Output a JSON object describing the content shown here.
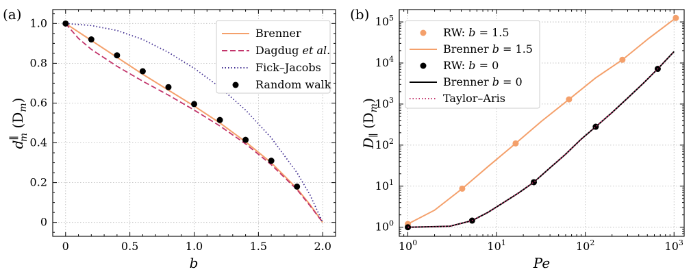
{
  "chart_data": [
    {
      "panel_label": "(a)",
      "type": "line",
      "xlabel": "b",
      "ylabel": "d_m^∥ (D_m)",
      "xlim": [
        -0.1,
        2.1
      ],
      "ylim": [
        -0.07,
        1.07
      ],
      "xscale": "linear",
      "yscale": "linear",
      "xticks": [
        0,
        0.5,
        1.0,
        1.5,
        2.0
      ],
      "xtick_labels": [
        "0",
        "0.5",
        "1.0",
        "1.5",
        "2.0"
      ],
      "yticks": [
        0,
        0.2,
        0.4,
        0.6,
        0.8,
        1.0
      ],
      "ytick_labels": [
        "0",
        "0.2",
        "0.4",
        "0.6",
        "0.8",
        "1.0"
      ],
      "grid": true,
      "legend_position": "top-right",
      "series": [
        {
          "name": "Brenner",
          "style": "solid",
          "color": "#f4a06b",
          "x": [
            0,
            0.2,
            0.4,
            0.6,
            0.8,
            1.0,
            1.2,
            1.4,
            1.6,
            1.8,
            1.9,
            2.0
          ],
          "y": [
            1.0,
            0.915,
            0.83,
            0.745,
            0.665,
            0.585,
            0.5,
            0.405,
            0.3,
            0.17,
            0.09,
            0.0
          ]
        },
        {
          "name": "Dagdug et al.",
          "style": "dashed",
          "color": "#c2346b",
          "x": [
            0,
            0.1,
            0.2,
            0.4,
            0.6,
            0.8,
            1.0,
            1.2,
            1.4,
            1.6,
            1.8,
            1.9,
            2.0
          ],
          "y": [
            1.0,
            0.925,
            0.87,
            0.785,
            0.71,
            0.64,
            0.565,
            0.485,
            0.395,
            0.29,
            0.165,
            0.085,
            0.0
          ]
        },
        {
          "name": "Fick–Jacobs",
          "style": "dotted",
          "color": "#3d2a8f",
          "x": [
            0,
            0.2,
            0.4,
            0.6,
            0.8,
            1.0,
            1.2,
            1.4,
            1.6,
            1.8,
            1.9,
            2.0
          ],
          "y": [
            1.0,
            0.99,
            0.965,
            0.92,
            0.855,
            0.775,
            0.68,
            0.565,
            0.425,
            0.25,
            0.14,
            0.0
          ]
        },
        {
          "name": "Random walk",
          "style": "markers",
          "color": "#000000",
          "x": [
            0,
            0.2,
            0.4,
            0.6,
            0.8,
            1.0,
            1.2,
            1.4,
            1.6,
            1.8
          ],
          "y": [
            1.0,
            0.92,
            0.84,
            0.76,
            0.68,
            0.595,
            0.515,
            0.415,
            0.31,
            0.18
          ]
        }
      ]
    },
    {
      "panel_label": "(b)",
      "type": "line",
      "xlabel": "Pe",
      "ylabel": "D_∥ (D_m)",
      "xlim": [
        0.8,
        1300
      ],
      "ylim": [
        0.6,
        200000
      ],
      "xscale": "log",
      "yscale": "log",
      "xticks": [
        1,
        10,
        100,
        1000
      ],
      "xtick_labels": [
        "10",
        "10",
        "10",
        "10"
      ],
      "xtick_exponents": [
        "0",
        "1",
        "2",
        "3"
      ],
      "yticks": [
        1,
        10,
        100,
        1000,
        10000,
        100000
      ],
      "ytick_labels": [
        "10",
        "10",
        "10",
        "10",
        "10",
        "10"
      ],
      "ytick_exponents": [
        "0",
        "1",
        "2",
        "3",
        "4",
        "5"
      ],
      "grid": true,
      "legend_position": "top-left",
      "series": [
        {
          "name": "RW: b = 1.5",
          "style": "markers",
          "color": "#f4a06b",
          "x": [
            1,
            4.1,
            16.4,
            65.5,
            262,
            1048
          ],
          "y": [
            1.2,
            8.7,
            110,
            1300,
            12000,
            125000
          ]
        },
        {
          "name": "Brenner b = 1.5",
          "style": "solid",
          "color": "#f4a06b",
          "x": [
            1,
            2,
            4.1,
            8,
            16.4,
            32,
            65.5,
            130,
            262,
            520,
            1048
          ],
          "y": [
            1.2,
            2.6,
            8.7,
            30,
            110,
            380,
            1300,
            4300,
            12000,
            40000,
            125000
          ]
        },
        {
          "name": "RW: b = 0",
          "style": "markers",
          "color": "#000000",
          "x": [
            1,
            5.3,
            26.3,
            131,
            655
          ],
          "y": [
            1.0,
            1.45,
            12.5,
            280,
            7200
          ]
        },
        {
          "name": "Brenner b = 0",
          "style": "solid",
          "color": "#000000",
          "x": [
            1,
            2,
            3,
            5.3,
            8,
            12,
            18,
            26.3,
            40,
            60,
            90,
            131,
            200,
            300,
            450,
            655,
            1000
          ],
          "y": [
            1.0,
            1.03,
            1.06,
            1.45,
            2.3,
            4.0,
            7.0,
            12.5,
            28,
            60,
            140,
            280,
            620,
            1400,
            3200,
            7200,
            19000
          ]
        },
        {
          "name": "Taylor–Aris",
          "style": "dotted",
          "color": "#c2346b",
          "x": [
            1,
            2,
            3,
            5.3,
            8,
            12,
            18,
            26.3,
            40,
            60,
            90,
            131,
            200,
            300,
            450,
            655,
            1000
          ],
          "y": [
            1.0,
            1.03,
            1.06,
            1.45,
            2.3,
            4.0,
            7.0,
            12.5,
            28,
            60,
            140,
            280,
            620,
            1400,
            3200,
            7200,
            19000
          ]
        }
      ]
    }
  ],
  "legends": {
    "a": [
      {
        "label": "Brenner",
        "label_italic": ""
      },
      {
        "label": "Dagdug ",
        "label_italic": "et al."
      },
      {
        "label": "Fick–Jacobs",
        "label_italic": ""
      },
      {
        "label": "Random walk",
        "label_italic": ""
      }
    ],
    "b": [
      {
        "prefix": "RW: ",
        "var": "b",
        "suffix": " = 1.5"
      },
      {
        "prefix": "Brenner ",
        "var": "b",
        "suffix": " = 1.5"
      },
      {
        "prefix": "RW: ",
        "var": "b",
        "suffix": " = 0"
      },
      {
        "prefix": "Brenner ",
        "var": "b",
        "suffix": " = 0"
      },
      {
        "prefix": "Taylor–Aris",
        "var": "",
        "suffix": ""
      }
    ]
  },
  "ylabel_parts": {
    "a": {
      "main": "d",
      "sub": "m",
      "sup": "∥",
      "unit": "(D",
      "unit_sub": "m",
      "unit_close": ")"
    },
    "b": {
      "main": "D",
      "sub": "∥",
      "unit": "(D",
      "unit_sub": "m",
      "unit_close": ")"
    }
  }
}
